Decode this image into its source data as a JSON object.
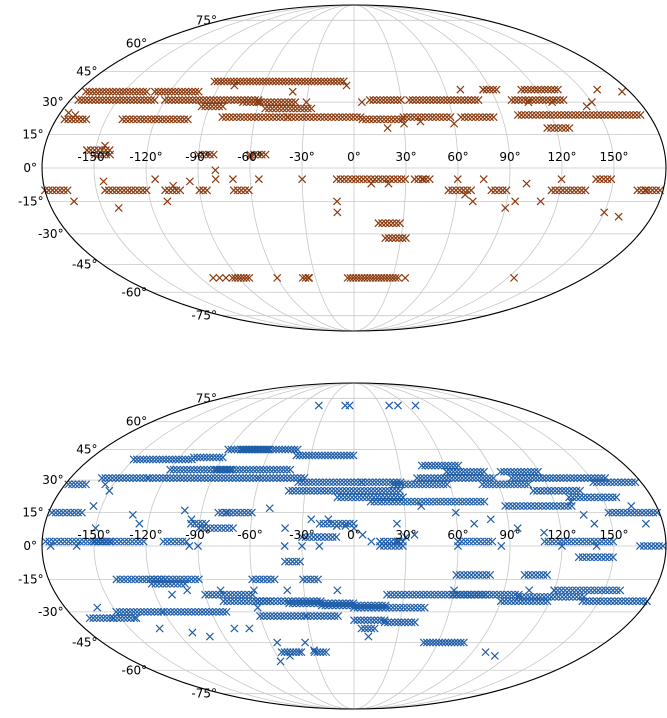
{
  "chart_data": [
    {
      "type": "scatter",
      "projection": "mollweide",
      "grid": true,
      "marker": "x",
      "color": "#8b3a0e",
      "lon_ticks": [
        -150,
        -120,
        -90,
        -60,
        -30,
        0,
        30,
        60,
        90,
        120,
        150
      ],
      "lon_labels": [
        "-150°",
        "-120°",
        "-90°",
        "-60°",
        "-30°",
        "0°",
        "30°",
        "60°",
        "90°",
        "120°",
        "150°"
      ],
      "lat_ticks": [
        -75,
        -60,
        -45,
        -30,
        -15,
        0,
        15,
        30,
        45,
        60,
        75
      ],
      "lat_labels": [
        "-75°",
        "-60°",
        "-45°",
        "-30°",
        "-15°",
        "0°",
        "15°",
        "30°",
        "45°",
        "60°",
        "75°"
      ],
      "strips": [
        [
          -175,
          -135,
          35
        ],
        [
          -130,
          -100,
          35
        ],
        [
          -95,
          -40,
          40
        ],
        [
          -40,
          -5,
          40
        ],
        [
          -175,
          -125,
          31
        ],
        [
          -120,
          -60,
          31
        ],
        [
          -95,
          -80,
          28
        ],
        [
          -70,
          -35,
          30
        ],
        [
          -55,
          -25,
          27
        ],
        [
          10,
          30,
          31
        ],
        [
          35,
          80,
          31
        ],
        [
          85,
          95,
          36
        ],
        [
          110,
          135,
          36
        ],
        [
          100,
          135,
          31
        ],
        [
          100,
          175,
          24
        ],
        [
          -175,
          -160,
          22
        ],
        [
          -140,
          -100,
          22
        ],
        [
          -80,
          -40,
          23
        ],
        [
          -40,
          5,
          23
        ],
        [
          5,
          30,
          22
        ],
        [
          30,
          60,
          23
        ],
        [
          65,
          85,
          23
        ],
        [
          115,
          130,
          18
        ],
        [
          -155,
          -140,
          8
        ],
        [
          -150,
          -140,
          6
        ],
        [
          -90,
          -80,
          6
        ],
        [
          -60,
          -50,
          6
        ],
        [
          -145,
          -120,
          -10
        ],
        [
          -180,
          -165,
          -10
        ],
        [
          -110,
          -100,
          -10
        ],
        [
          -70,
          -60,
          -10
        ],
        [
          -90,
          -85,
          -10
        ],
        [
          -10,
          30,
          -5
        ],
        [
          35,
          45,
          -5
        ],
        [
          55,
          70,
          -10
        ],
        [
          80,
          90,
          -10
        ],
        [
          115,
          135,
          -10
        ],
        [
          140,
          150,
          -5
        ],
        [
          165,
          180,
          -10
        ],
        [
          15,
          30,
          -25
        ],
        [
          20,
          35,
          -32
        ],
        [
          -40,
          -35,
          -52
        ],
        [
          -5,
          35,
          -52
        ],
        [
          -95,
          -80,
          -52
        ]
      ],
      "points": [
        [
          -80,
          38
        ],
        [
          -30,
          30
        ],
        [
          5,
          30
        ],
        [
          70,
          36
        ],
        [
          85,
          36
        ],
        [
          160,
          36
        ],
        [
          145,
          28
        ],
        [
          20,
          18
        ],
        [
          40,
          21
        ],
        [
          -155,
          8
        ],
        [
          -145,
          10
        ],
        [
          -80,
          -1
        ],
        [
          -145,
          -6
        ],
        [
          -115,
          -5
        ],
        [
          -105,
          -8
        ],
        [
          -95,
          -6
        ],
        [
          -80,
          -5
        ],
        [
          -70,
          -5
        ],
        [
          -55,
          -5
        ],
        [
          -30,
          -5
        ],
        [
          10,
          -7
        ],
        [
          20,
          -7
        ],
        [
          40,
          -5
        ],
        [
          60,
          -5
        ],
        [
          75,
          -5
        ],
        [
          100,
          -7
        ],
        [
          120,
          -5
        ],
        [
          65,
          -12
        ],
        [
          95,
          -15
        ],
        [
          -165,
          -15
        ],
        [
          -140,
          -18
        ],
        [
          -110,
          -15
        ],
        [
          -10,
          -15
        ],
        [
          -10,
          -20
        ],
        [
          70,
          -15
        ],
        [
          90,
          -18
        ],
        [
          110,
          -15
        ],
        [
          150,
          -20
        ],
        [
          170,
          -10
        ],
        [
          160,
          -22
        ],
        [
          -110,
          -52
        ],
        [
          -105,
          -52
        ],
        [
          -100,
          -52
        ],
        [
          -60,
          -52
        ],
        [
          -35,
          -52
        ],
        [
          40,
          -52
        ],
        [
          125,
          -52
        ],
        [
          -170,
          24
        ],
        [
          -60,
          30
        ],
        [
          -60,
          5
        ],
        [
          -40,
          35
        ],
        [
          -5,
          38
        ],
        [
          30,
          20
        ],
        [
          60,
          20
        ],
        [
          110,
          30
        ],
        [
          125,
          30
        ],
        [
          150,
          30
        ],
        [
          175,
          35
        ],
        [
          -175,
          25
        ]
      ]
    },
    {
      "type": "scatter",
      "projection": "mollweide",
      "grid": true,
      "marker": "x",
      "color": "#1f5ea8",
      "lon_ticks": [
        -150,
        -120,
        -90,
        -60,
        -30,
        0,
        30,
        60,
        90,
        120,
        150
      ],
      "lon_labels": [
        "-150°",
        "-120°",
        "-90°",
        "-60°",
        "-30°",
        "0°",
        "30°",
        "60°",
        "90°",
        "120°",
        "150°"
      ],
      "lat_ticks": [
        -75,
        -60,
        -45,
        -30,
        -15,
        0,
        15,
        30,
        45,
        60,
        75
      ],
      "lat_labels": [
        "-75°",
        "-60°",
        "-45°",
        "-30°",
        "-15°",
        "0°",
        "15°",
        "30°",
        "45°",
        "60°",
        "75°"
      ],
      "strips": [
        [
          -150,
          -110,
          40
        ],
        [
          -110,
          -90,
          41
        ],
        [
          -90,
          -60,
          45
        ],
        [
          -80,
          -40,
          45
        ],
        [
          -40,
          0,
          42
        ],
        [
          -120,
          -80,
          35
        ],
        [
          -90,
          -40,
          35
        ],
        [
          -160,
          -130,
          31
        ],
        [
          -130,
          -60,
          31
        ],
        [
          -60,
          -30,
          31
        ],
        [
          -35,
          5,
          29
        ],
        [
          5,
          30,
          29
        ],
        [
          45,
          70,
          37
        ],
        [
          60,
          85,
          34
        ],
        [
          95,
          120,
          34
        ],
        [
          40,
          90,
          31
        ],
        [
          100,
          160,
          31
        ],
        [
          150,
          178,
          29
        ],
        [
          -178,
          -165,
          28
        ],
        [
          -40,
          30,
          25
        ],
        [
          25,
          60,
          28
        ],
        [
          80,
          110,
          28
        ],
        [
          110,
          140,
          25
        ],
        [
          130,
          160,
          22
        ],
        [
          -10,
          30,
          22
        ],
        [
          10,
          80,
          20
        ],
        [
          90,
          130,
          18
        ],
        [
          150,
          180,
          15
        ],
        [
          -178,
          -160,
          15
        ],
        [
          -80,
          -60,
          15
        ],
        [
          -95,
          -85,
          10
        ],
        [
          -90,
          -70,
          8
        ],
        [
          -178,
          -140,
          2
        ],
        [
          -150,
          -120,
          2
        ],
        [
          -110,
          -95,
          2
        ],
        [
          -20,
          0,
          10
        ],
        [
          -30,
          -10,
          4
        ],
        [
          15,
          30,
          2
        ],
        [
          60,
          80,
          2
        ],
        [
          110,
          150,
          2
        ],
        [
          165,
          180,
          0
        ],
        [
          130,
          150,
          -5
        ],
        [
          -40,
          -30,
          -7
        ],
        [
          15,
          30,
          0
        ],
        [
          60,
          80,
          -13
        ],
        [
          100,
          115,
          -13
        ],
        [
          -120,
          -100,
          -17
        ],
        [
          -140,
          -110,
          -15
        ],
        [
          -120,
          -90,
          -15
        ],
        [
          -60,
          -45,
          -15
        ],
        [
          -30,
          -20,
          -15
        ],
        [
          -90,
          -60,
          -22
        ],
        [
          -80,
          -50,
          -25
        ],
        [
          -60,
          -20,
          -25
        ],
        [
          -40,
          0,
          -26
        ],
        [
          -20,
          20,
          -27
        ],
        [
          0,
          45,
          -28
        ],
        [
          20,
          80,
          -22
        ],
        [
          60,
          100,
          -22
        ],
        [
          90,
          120,
          -25
        ],
        [
          100,
          140,
          -23
        ],
        [
          120,
          160,
          -20
        ],
        [
          140,
          180,
          -25
        ],
        [
          -170,
          -140,
          -33
        ],
        [
          -150,
          -120,
          -30
        ],
        [
          -120,
          -80,
          -30
        ],
        [
          -60,
          -30,
          -32
        ],
        [
          -30,
          -10,
          -32
        ],
        [
          0,
          20,
          -34
        ],
        [
          20,
          40,
          -35
        ],
        [
          5,
          15,
          -38
        ],
        [
          50,
          80,
          -45
        ],
        [
          -30,
          -20,
          -50
        ],
        [
          -55,
          -40,
          -50
        ]
      ],
      "points": [
        [
          -40,
          70
        ],
        [
          -10,
          70
        ],
        [
          -5,
          70
        ],
        [
          40,
          70
        ],
        [
          50,
          70
        ],
        [
          70,
          70
        ],
        [
          -155,
          28
        ],
        [
          -150,
          25
        ],
        [
          -155,
          18
        ],
        [
          -130,
          14
        ],
        [
          -150,
          8
        ],
        [
          -125,
          10
        ],
        [
          -100,
          16
        ],
        [
          -95,
          12
        ],
        [
          -75,
          15
        ],
        [
          -50,
          17
        ],
        [
          -40,
          8
        ],
        [
          -25,
          12
        ],
        [
          -15,
          12
        ],
        [
          -10,
          9
        ],
        [
          25,
          10
        ],
        [
          35,
          5
        ],
        [
          40,
          18
        ],
        [
          60,
          15
        ],
        [
          70,
          10
        ],
        [
          80,
          12
        ],
        [
          95,
          8
        ],
        [
          110,
          6
        ],
        [
          130,
          20
        ],
        [
          135,
          14
        ],
        [
          140,
          10
        ],
        [
          165,
          18
        ],
        [
          170,
          10
        ],
        [
          -175,
          0
        ],
        [
          -160,
          0
        ],
        [
          -95,
          0
        ],
        [
          -90,
          0
        ],
        [
          -40,
          0
        ],
        [
          -30,
          0
        ],
        [
          -20,
          0
        ],
        [
          15,
          2
        ],
        [
          25,
          2
        ],
        [
          30,
          4
        ],
        [
          60,
          0
        ],
        [
          85,
          0
        ],
        [
          120,
          0
        ],
        [
          140,
          0
        ],
        [
          -110,
          -22
        ],
        [
          -100,
          -20
        ],
        [
          -80,
          -20
        ],
        [
          -60,
          -20
        ],
        [
          -40,
          -20
        ],
        [
          -10,
          -20
        ],
        [
          60,
          -20
        ],
        [
          105,
          -20
        ],
        [
          120,
          -20
        ],
        [
          -160,
          -28
        ],
        [
          -155,
          -33
        ],
        [
          -140,
          -33
        ],
        [
          -130,
          -38
        ],
        [
          -110,
          -40
        ],
        [
          -100,
          -42
        ],
        [
          -80,
          -38
        ],
        [
          -70,
          -38
        ],
        [
          -60,
          -28
        ],
        [
          10,
          -42
        ],
        [
          -30,
          -49
        ],
        [
          -40,
          -50
        ],
        [
          -50,
          -52
        ],
        [
          -60,
          -55
        ],
        [
          100,
          -50
        ],
        [
          110,
          -52
        ],
        [
          -55,
          -45
        ],
        [
          -35,
          -45
        ],
        [
          -5,
          9
        ],
        [
          0,
          8
        ],
        [
          5,
          5
        ],
        [
          10,
          2
        ]
      ]
    }
  ]
}
